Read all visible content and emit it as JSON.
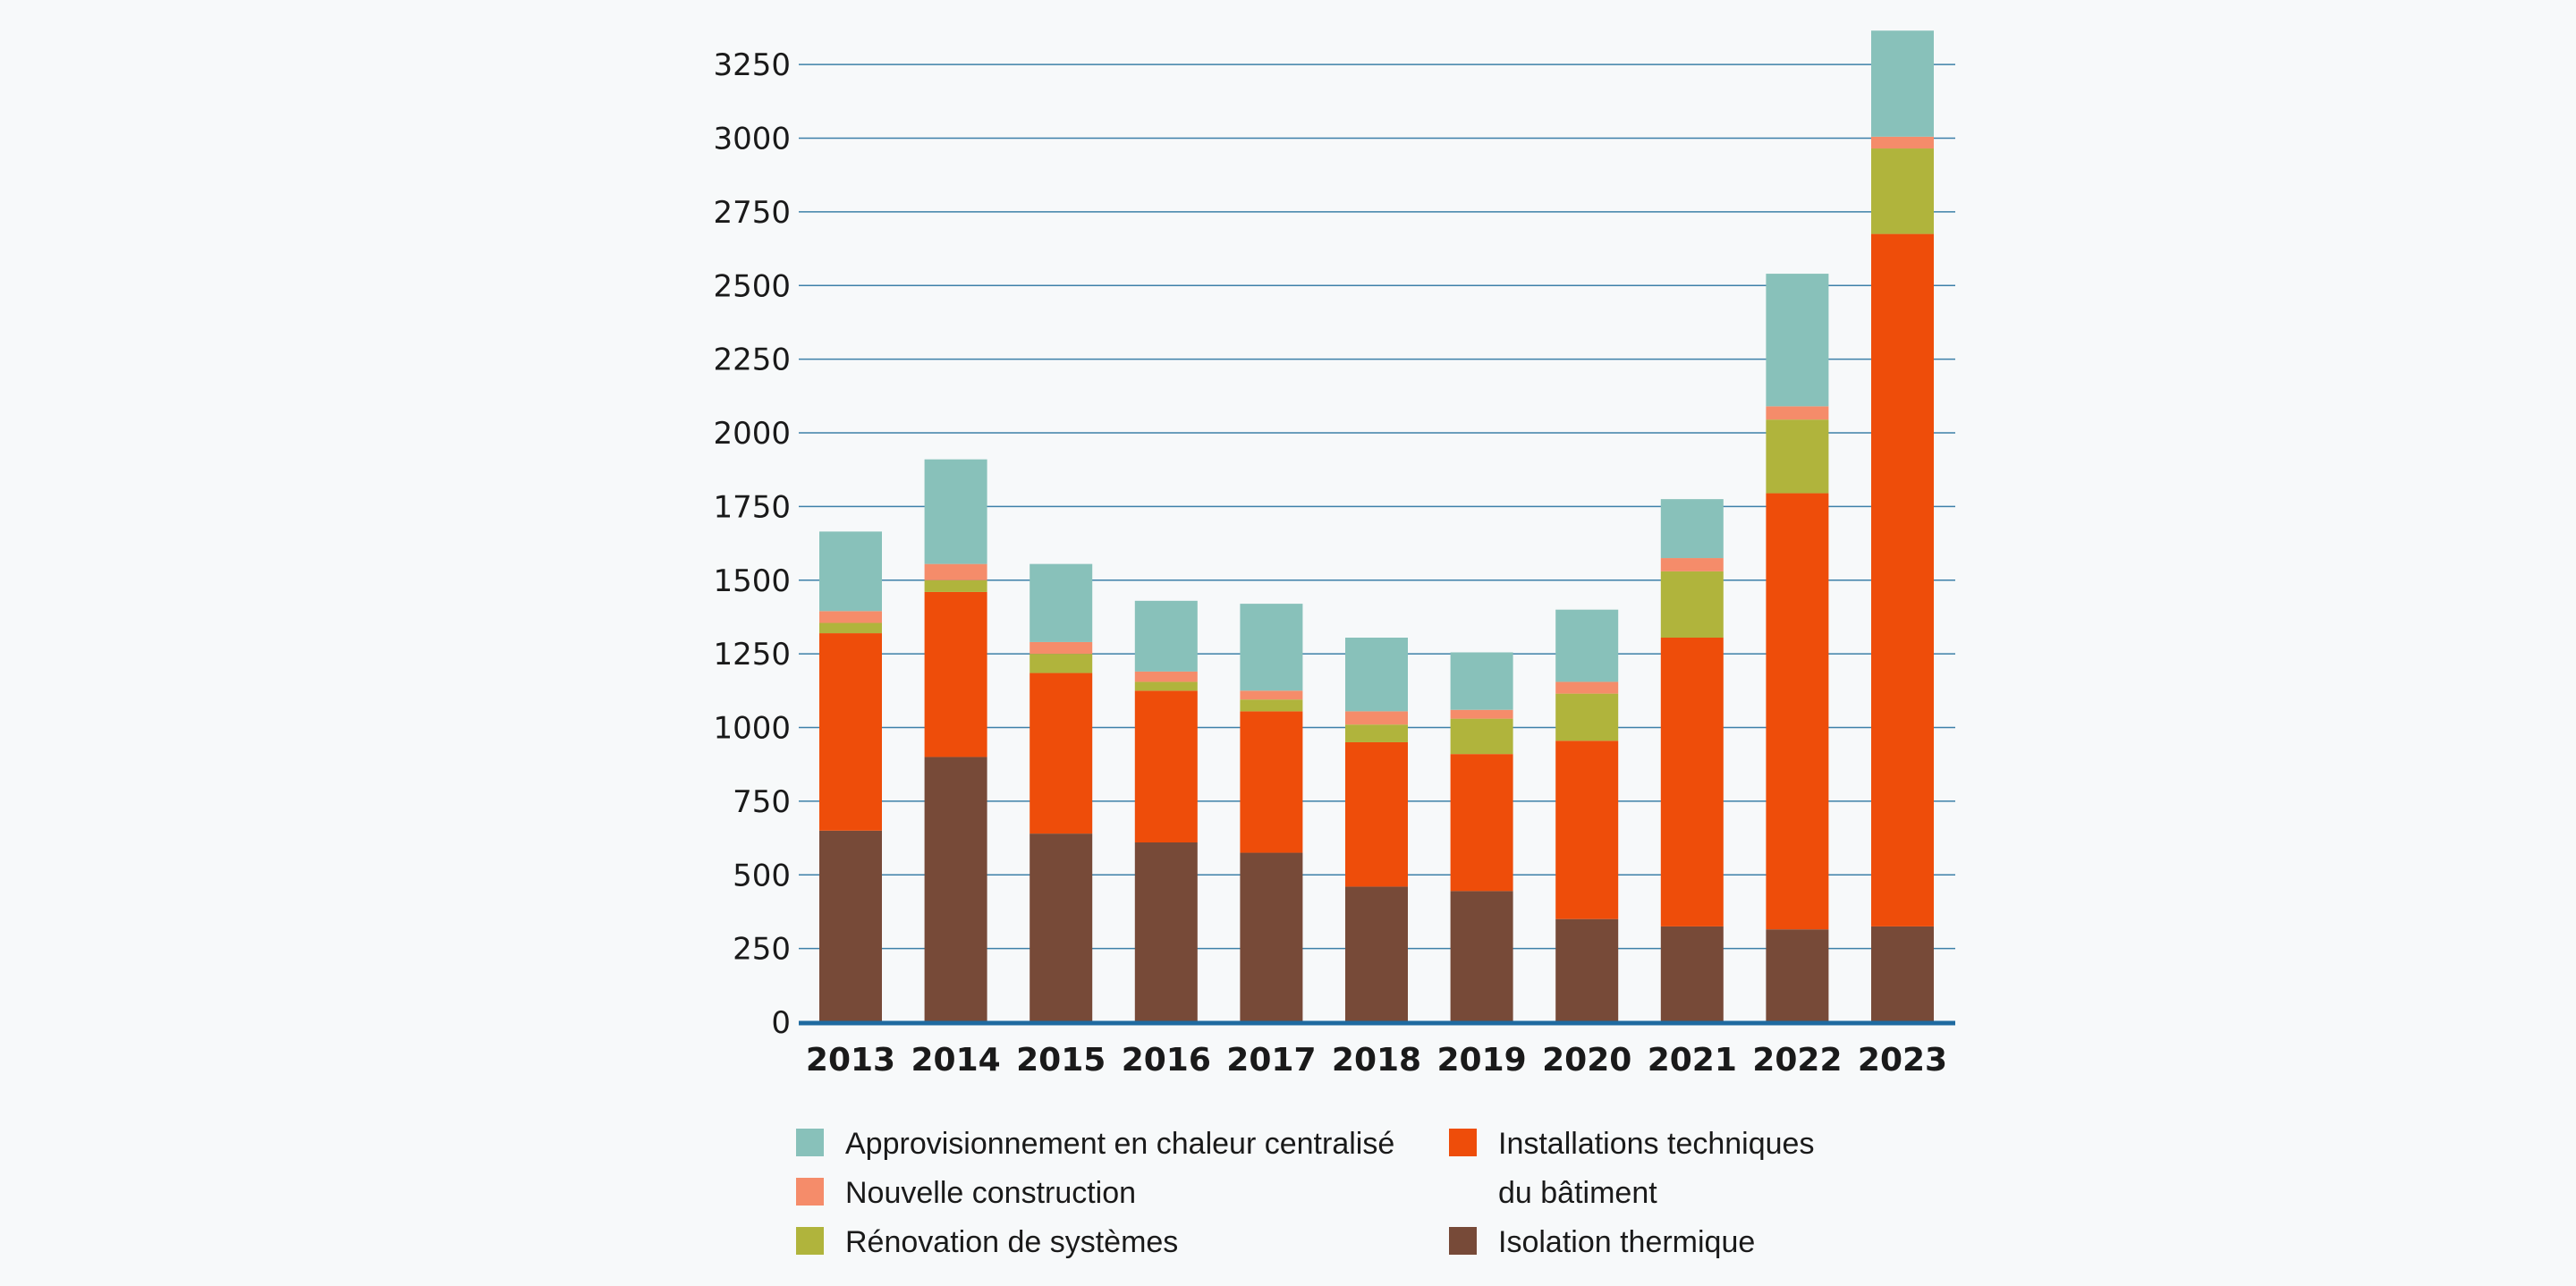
{
  "chart_data": {
    "type": "bar",
    "stacked": true,
    "title": "",
    "xlabel": "",
    "ylabel": "",
    "ylim": [
      0,
      3360
    ],
    "yticks": [
      0,
      250,
      500,
      750,
      1000,
      1250,
      1500,
      1750,
      2000,
      2250,
      2500,
      2750,
      3000,
      3250
    ],
    "grid": true,
    "legend_position": "bottom",
    "categories": [
      "2013",
      "2014",
      "2015",
      "2016",
      "2017",
      "2018",
      "2019",
      "2020",
      "2021",
      "2022",
      "2023"
    ],
    "series": [
      {
        "name": "Isolation thermique",
        "color": "#774a38",
        "values": [
          650,
          900,
          640,
          610,
          575,
          460,
          445,
          350,
          325,
          315,
          325
        ]
      },
      {
        "name": "Installations techniques du bâtiment",
        "color": "#ee4d0a",
        "values": [
          670,
          560,
          545,
          515,
          480,
          490,
          465,
          605,
          980,
          1480,
          2350
        ]
      },
      {
        "name": "Rénovation de systèmes",
        "color": "#b0b43c",
        "values": [
          35,
          40,
          65,
          30,
          40,
          60,
          120,
          160,
          225,
          250,
          290
        ]
      },
      {
        "name": "Nouvelle construction",
        "color": "#f58c6a",
        "values": [
          40,
          55,
          40,
          35,
          30,
          45,
          30,
          40,
          45,
          45,
          40
        ]
      },
      {
        "name": "Approvisionnement en chaleur centralisé",
        "color": "#88c1ba",
        "values": [
          270,
          355,
          265,
          240,
          295,
          250,
          195,
          245,
          200,
          450,
          360
        ]
      }
    ]
  },
  "legend": {
    "items": [
      {
        "lines": [
          "Approvisionnement en chaleur centralisé"
        ],
        "color": "#88c1ba"
      },
      {
        "lines": [
          "Nouvelle construction"
        ],
        "color": "#f58c6a"
      },
      {
        "lines": [
          "Rénovation de systèmes"
        ],
        "color": "#b0b43c"
      },
      {
        "lines": [
          "Installations techniques",
          "du bâtiment"
        ],
        "color": "#ee4d0a"
      },
      {
        "lines": [
          "Isolation thermique"
        ],
        "color": "#774a38"
      }
    ]
  }
}
